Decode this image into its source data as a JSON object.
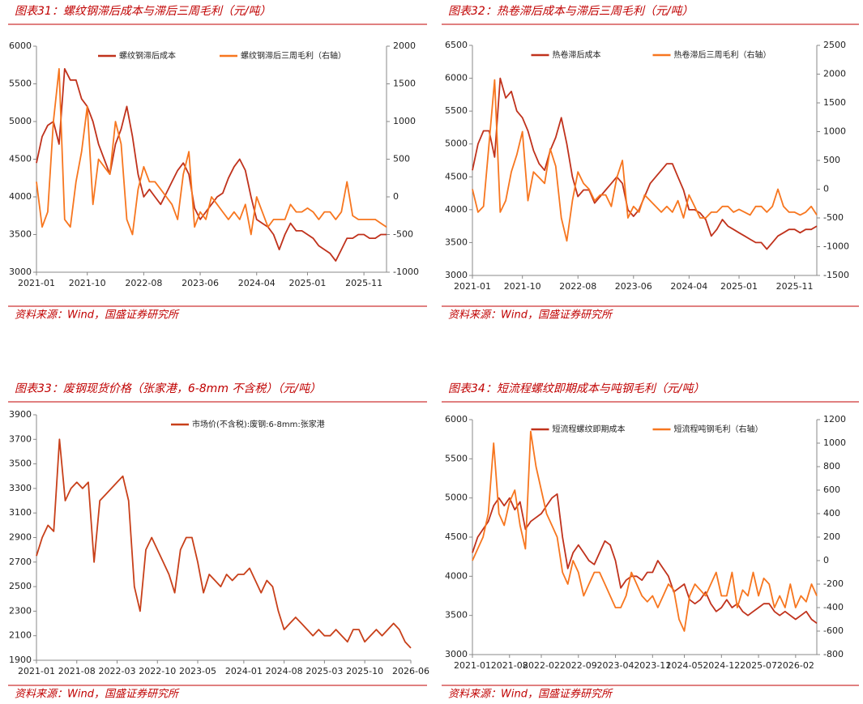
{
  "chart_data": [
    {
      "type": "line",
      "title": "图表31：螺纹钢滞后成本与滞后三周毛利（元/吨）",
      "source": "资料来源：Wind，国盛证券研究所",
      "x": [
        "2021-01",
        "2021-02",
        "2021-03",
        "2021-04",
        "2021-05",
        "2021-06",
        "2021-07",
        "2021-08",
        "2021-09",
        "2021-10",
        "2021-11",
        "2021-12",
        "2022-01",
        "2022-02",
        "2022-03",
        "2022-04",
        "2022-05",
        "2022-06",
        "2022-07",
        "2022-08",
        "2022-09",
        "2022-10",
        "2022-11",
        "2022-12",
        "2023-01",
        "2023-02",
        "2023-03",
        "2023-04",
        "2023-05",
        "2023-06",
        "2023-07",
        "2023-08",
        "2023-09",
        "2023-10",
        "2023-11",
        "2023-12",
        "2024-01",
        "2024-02",
        "2024-03",
        "2024-04",
        "2024-05",
        "2024-06",
        "2024-07",
        "2024-08",
        "2024-09",
        "2024-10",
        "2024-11",
        "2024-12",
        "2025-01",
        "2025-02",
        "2025-03",
        "2025-04",
        "2025-05",
        "2025-06",
        "2025-07",
        "2025-08",
        "2025-09",
        "2025-10",
        "2025-11",
        "2025-12",
        "2026-01",
        "2026-02",
        "2026-03"
      ],
      "xlim": [
        "2021-01",
        "2026-03"
      ],
      "xticks": [
        "2021-01",
        "2021-10",
        "2022-08",
        "2023-06",
        "2024-04",
        "2025-01",
        "2025-11"
      ],
      "ylim": [
        3000,
        6000
      ],
      "yticks": [
        3000,
        3500,
        4000,
        4500,
        5000,
        5500,
        6000
      ],
      "y2lim": [
        -1000,
        2000
      ],
      "y2ticks": [
        -1000,
        -500,
        0,
        500,
        1000,
        1500,
        2000
      ],
      "series": [
        {
          "name": "螺纹钢滞后成本",
          "color": "#c0321c",
          "values": [
            4450,
            4800,
            4950,
            5000,
            4700,
            5700,
            5550,
            5550,
            5300,
            5200,
            5000,
            4700,
            4500,
            4300,
            4700,
            4900,
            5200,
            4800,
            4300,
            4000,
            4100,
            4000,
            3900,
            4050,
            4200,
            4350,
            4450,
            4300,
            3850,
            3700,
            3800,
            3900,
            4000,
            4050,
            4250,
            4400,
            4500,
            4350,
            4000,
            3700,
            3650,
            3600,
            3500,
            3300,
            3500,
            3650,
            3550,
            3550,
            3500,
            3450,
            3350,
            3300,
            3250,
            3150,
            3300,
            3450,
            3450,
            3500,
            3500,
            3450,
            3450,
            3500,
            3500
          ]
        },
        {
          "name": "螺纹钢滞后三周毛利（右轴）",
          "color": "#f7761f",
          "axis": "y2",
          "values": [
            200,
            -400,
            -200,
            1000,
            1700,
            -300,
            -400,
            200,
            600,
            1200,
            -100,
            500,
            400,
            300,
            1000,
            700,
            -300,
            -500,
            100,
            400,
            200,
            200,
            100,
            0,
            -100,
            -300,
            300,
            600,
            -400,
            -200,
            -300,
            0,
            -100,
            -200,
            -300,
            -200,
            -300,
            -100,
            -500,
            0,
            -200,
            -400,
            -300,
            -300,
            -300,
            -100,
            -200,
            -200,
            -150,
            -200,
            -300,
            -200,
            -200,
            -300,
            -200,
            200,
            -250,
            -300,
            -300,
            -300,
            -300,
            -350,
            -400
          ]
        }
      ]
    },
    {
      "type": "line",
      "title": "图表32：热卷滞后成本与滞后三周毛利（元/吨）",
      "source": "资料来源：Wind，国盛证券研究所",
      "x": [
        "2021-01",
        "2021-02",
        "2021-03",
        "2021-04",
        "2021-05",
        "2021-06",
        "2021-07",
        "2021-08",
        "2021-09",
        "2021-10",
        "2021-11",
        "2021-12",
        "2022-01",
        "2022-02",
        "2022-03",
        "2022-04",
        "2022-05",
        "2022-06",
        "2022-07",
        "2022-08",
        "2022-09",
        "2022-10",
        "2022-11",
        "2022-12",
        "2023-01",
        "2023-02",
        "2023-03",
        "2023-04",
        "2023-05",
        "2023-06",
        "2023-07",
        "2023-08",
        "2023-09",
        "2023-10",
        "2023-11",
        "2023-12",
        "2024-01",
        "2024-02",
        "2024-03",
        "2024-04",
        "2024-05",
        "2024-06",
        "2024-07",
        "2024-08",
        "2024-09",
        "2024-10",
        "2024-11",
        "2024-12",
        "2025-01",
        "2025-02",
        "2025-03",
        "2025-04",
        "2025-05",
        "2025-06",
        "2025-07",
        "2025-08",
        "2025-09",
        "2025-10",
        "2025-11",
        "2025-12",
        "2026-01",
        "2026-02",
        "2026-03"
      ],
      "xlim": [
        "2021-01",
        "2026-03"
      ],
      "xticks": [
        "2021-01",
        "2021-10",
        "2022-08",
        "2023-06",
        "2024-04",
        "2025-01",
        "2025-11"
      ],
      "ylim": [
        3000,
        6500
      ],
      "yticks": [
        3000,
        3500,
        4000,
        4500,
        5000,
        5500,
        6000,
        6500
      ],
      "y2lim": [
        -1500,
        2500
      ],
      "y2ticks": [
        -1500,
        -1000,
        -500,
        0,
        500,
        1000,
        1500,
        2000,
        2500
      ],
      "series": [
        {
          "name": "热卷滞后成本",
          "color": "#c0321c",
          "values": [
            4600,
            5000,
            5200,
            5200,
            4800,
            6000,
            5700,
            5800,
            5500,
            5400,
            5200,
            4900,
            4700,
            4600,
            4900,
            5100,
            5400,
            5000,
            4500,
            4200,
            4300,
            4300,
            4100,
            4200,
            4300,
            4400,
            4500,
            4400,
            4000,
            3900,
            4000,
            4200,
            4400,
            4500,
            4600,
            4700,
            4700,
            4500,
            4300,
            4000,
            4000,
            3950,
            3850,
            3600,
            3700,
            3850,
            3750,
            3700,
            3650,
            3600,
            3550,
            3500,
            3500,
            3400,
            3500,
            3600,
            3650,
            3700,
            3700,
            3650,
            3700,
            3700,
            3750
          ]
        },
        {
          "name": "热卷滞后三周毛利（右轴）",
          "color": "#f7761f",
          "axis": "y2",
          "values": [
            0,
            -400,
            -300,
            800,
            1900,
            -400,
            -200,
            300,
            600,
            1000,
            -200,
            300,
            200,
            100,
            700,
            400,
            -500,
            -900,
            -200,
            300,
            100,
            0,
            -200,
            -100,
            -100,
            -300,
            200,
            500,
            -500,
            -300,
            -400,
            -100,
            -200,
            -300,
            -400,
            -300,
            -400,
            -200,
            -500,
            -100,
            -300,
            -500,
            -500,
            -400,
            -400,
            -300,
            -300,
            -400,
            -350,
            -400,
            -450,
            -300,
            -300,
            -400,
            -300,
            0,
            -300,
            -400,
            -400,
            -450,
            -400,
            -300,
            -450
          ]
        }
      ]
    },
    {
      "type": "line",
      "title": "图表33：废钢现货价格（张家港，6-8mm 不含税）（元/吨）",
      "source": "资料来源：Wind，国盛证券研究所",
      "x": [
        "2021-01",
        "2021-02",
        "2021-03",
        "2021-04",
        "2021-05",
        "2021-06",
        "2021-07",
        "2021-08",
        "2021-09",
        "2021-10",
        "2021-11",
        "2021-12",
        "2022-01",
        "2022-02",
        "2022-03",
        "2022-04",
        "2022-05",
        "2022-06",
        "2022-07",
        "2022-08",
        "2022-09",
        "2022-10",
        "2022-11",
        "2022-12",
        "2023-01",
        "2023-02",
        "2023-03",
        "2023-04",
        "2023-05",
        "2023-06",
        "2023-07",
        "2023-08",
        "2023-09",
        "2023-10",
        "2023-11",
        "2023-12",
        "2024-01",
        "2024-02",
        "2024-03",
        "2024-04",
        "2024-05",
        "2024-06",
        "2024-07",
        "2024-08",
        "2024-09",
        "2024-10",
        "2024-11",
        "2024-12",
        "2025-01",
        "2025-02",
        "2025-03",
        "2025-04",
        "2025-05",
        "2025-06",
        "2025-07",
        "2025-08",
        "2025-09",
        "2025-10",
        "2025-11",
        "2025-12",
        "2026-01",
        "2026-02",
        "2026-03",
        "2026-04",
        "2026-05",
        "2026-06"
      ],
      "xlim": [
        "2021-01",
        "2026-06"
      ],
      "xticks": [
        "2021-01",
        "2021-08",
        "2022-03",
        "2022-10",
        "2023-05",
        "2024-01",
        "2024-08",
        "2025-03",
        "2025-10",
        "2026-06"
      ],
      "ylim": [
        1900,
        3900
      ],
      "yticks": [
        1900,
        2100,
        2300,
        2500,
        2700,
        2900,
        3100,
        3300,
        3500,
        3700,
        3900
      ],
      "series": [
        {
          "name": "市场价(不含税):废钢:6-8mm:张家港",
          "color": "#c8401a",
          "values": [
            2750,
            2900,
            3000,
            2950,
            3700,
            3200,
            3300,
            3350,
            3300,
            3350,
            2700,
            3200,
            3250,
            3300,
            3350,
            3400,
            3200,
            2500,
            2300,
            2800,
            2900,
            2800,
            2700,
            2600,
            2450,
            2800,
            2900,
            2900,
            2700,
            2450,
            2600,
            2550,
            2500,
            2600,
            2550,
            2600,
            2600,
            2650,
            2550,
            2450,
            2550,
            2500,
            2300,
            2150,
            2200,
            2250,
            2200,
            2150,
            2100,
            2150,
            2100,
            2100,
            2150,
            2100,
            2050,
            2150,
            2150,
            2050,
            2100,
            2150,
            2100,
            2150,
            2200,
            2150,
            2050,
            2000
          ]
        }
      ]
    },
    {
      "type": "line",
      "title": "图表34：短流程螺纹即期成本与吨钢毛利（元/吨）",
      "source": "资料来源：Wind，国盛证券研究所",
      "x": [
        "2021-01",
        "2021-02",
        "2021-03",
        "2021-04",
        "2021-05",
        "2021-06",
        "2021-07",
        "2021-08",
        "2021-09",
        "2021-10",
        "2021-11",
        "2021-12",
        "2022-01",
        "2022-02",
        "2022-03",
        "2022-04",
        "2022-05",
        "2022-06",
        "2022-07",
        "2022-08",
        "2022-09",
        "2022-10",
        "2022-11",
        "2022-12",
        "2023-01",
        "2023-02",
        "2023-03",
        "2023-04",
        "2023-05",
        "2023-06",
        "2023-07",
        "2023-08",
        "2023-09",
        "2023-10",
        "2023-11",
        "2023-12",
        "2024-01",
        "2024-02",
        "2024-03",
        "2024-04",
        "2024-05",
        "2024-06",
        "2024-07",
        "2024-08",
        "2024-09",
        "2024-10",
        "2024-11",
        "2024-12",
        "2025-01",
        "2025-02",
        "2025-03",
        "2025-04",
        "2025-05",
        "2025-06",
        "2025-07",
        "2025-08",
        "2025-09",
        "2025-10",
        "2025-11",
        "2025-12",
        "2026-01",
        "2026-02",
        "2026-03",
        "2026-04",
        "2026-05",
        "2026-06"
      ],
      "xlim": [
        "2021-01",
        "2026-06"
      ],
      "xticks": [
        "2021-01",
        "2021-08",
        "2022-02",
        "2022-09",
        "2023-04",
        "2023-11",
        "2024-05",
        "2024-12",
        "2025-07",
        "2026-02"
      ],
      "ylim": [
        3000,
        6000
      ],
      "yticks": [
        3000,
        3500,
        4000,
        4500,
        5000,
        5500,
        6000
      ],
      "y2lim": [
        -800,
        1200
      ],
      "y2ticks": [
        -800,
        -600,
        -400,
        -200,
        0,
        200,
        400,
        600,
        800,
        1000,
        1200
      ],
      "series": [
        {
          "name": "短流程螺纹即期成本",
          "color": "#c0321c",
          "values": [
            4300,
            4500,
            4600,
            4700,
            4900,
            5000,
            4900,
            5000,
            4850,
            4950,
            4600,
            4700,
            4750,
            4800,
            4900,
            5000,
            5050,
            4500,
            4100,
            4300,
            4400,
            4300,
            4200,
            4150,
            4300,
            4450,
            4400,
            4200,
            3850,
            3950,
            4000,
            4000,
            3950,
            4050,
            4050,
            4200,
            4100,
            4000,
            3800,
            3850,
            3900,
            3700,
            3650,
            3700,
            3800,
            3650,
            3550,
            3600,
            3700,
            3600,
            3650,
            3550,
            3500,
            3550,
            3600,
            3650,
            3650,
            3550,
            3500,
            3550,
            3500,
            3450,
            3500,
            3550,
            3450,
            3400
          ]
        },
        {
          "name": "短流程吨钢毛利（右轴）",
          "color": "#f7761f",
          "axis": "y2",
          "values": [
            0,
            100,
            200,
            400,
            1000,
            400,
            300,
            500,
            600,
            300,
            100,
            1100,
            800,
            600,
            400,
            300,
            200,
            -100,
            -200,
            0,
            -100,
            -300,
            -200,
            -100,
            -100,
            -200,
            -300,
            -400,
            -400,
            -300,
            -100,
            -200,
            -300,
            -350,
            -300,
            -400,
            -300,
            -200,
            -250,
            -500,
            -600,
            -300,
            -200,
            -250,
            -300,
            -200,
            -100,
            -300,
            -300,
            -100,
            -400,
            -250,
            -300,
            -100,
            -300,
            -150,
            -200,
            -400,
            -300,
            -400,
            -200,
            -400,
            -300,
            -350,
            -200,
            -300
          ]
        }
      ]
    }
  ]
}
